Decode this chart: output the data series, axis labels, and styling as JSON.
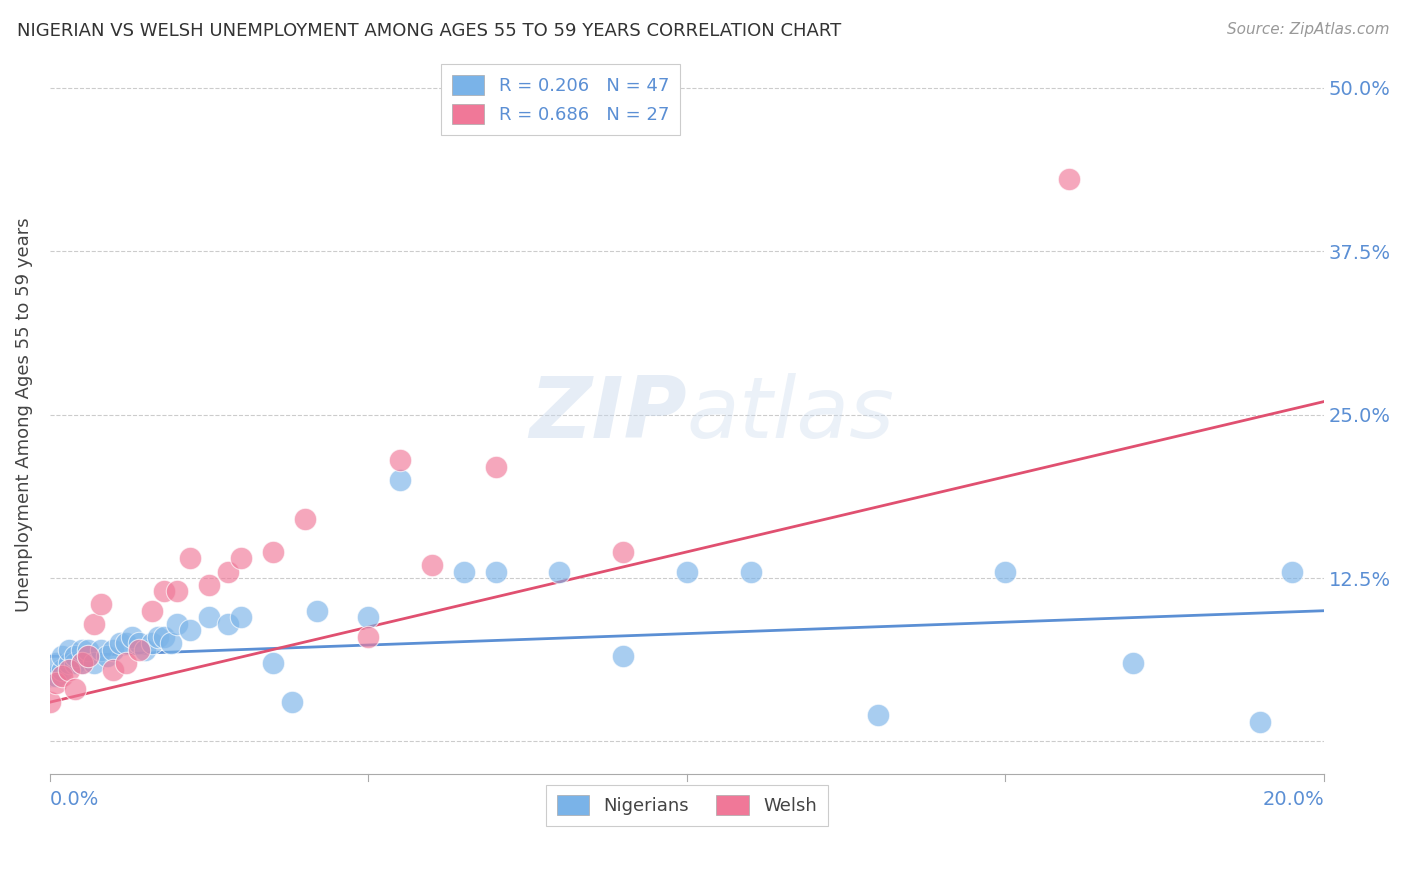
{
  "title": "NIGERIAN VS WELSH UNEMPLOYMENT AMONG AGES 55 TO 59 YEARS CORRELATION CHART",
  "source": "Source: ZipAtlas.com",
  "ylabel": "Unemployment Among Ages 55 to 59 years",
  "yticks": [
    0.0,
    0.125,
    0.25,
    0.375,
    0.5
  ],
  "ytick_labels": [
    "",
    "12.5%",
    "25.0%",
    "37.5%",
    "50.0%"
  ],
  "xlim": [
    0.0,
    0.2
  ],
  "ylim": [
    -0.025,
    0.525
  ],
  "legend_label1": "Nigerians",
  "legend_label2": "Welsh",
  "nigerian_color": "#7ab3e8",
  "welsh_color": "#f07898",
  "nigerian_line_color": "#5b8fd4",
  "welsh_line_color": "#e05070",
  "nigerian_x": [
    0.0,
    0.001,
    0.001,
    0.002,
    0.002,
    0.003,
    0.003,
    0.004,
    0.004,
    0.005,
    0.005,
    0.006,
    0.006,
    0.007,
    0.008,
    0.009,
    0.01,
    0.011,
    0.012,
    0.013,
    0.014,
    0.015,
    0.016,
    0.017,
    0.018,
    0.019,
    0.02,
    0.022,
    0.025,
    0.028,
    0.03,
    0.035,
    0.038,
    0.042,
    0.05,
    0.055,
    0.065,
    0.07,
    0.08,
    0.09,
    0.1,
    0.11,
    0.13,
    0.15,
    0.17,
    0.19,
    0.195
  ],
  "nigerian_y": [
    0.05,
    0.05,
    0.06,
    0.055,
    0.065,
    0.06,
    0.07,
    0.06,
    0.065,
    0.06,
    0.07,
    0.065,
    0.07,
    0.06,
    0.07,
    0.065,
    0.07,
    0.075,
    0.075,
    0.08,
    0.075,
    0.07,
    0.075,
    0.08,
    0.08,
    0.075,
    0.09,
    0.085,
    0.095,
    0.09,
    0.095,
    0.06,
    0.03,
    0.1,
    0.095,
    0.2,
    0.13,
    0.13,
    0.13,
    0.065,
    0.13,
    0.13,
    0.02,
    0.13,
    0.06,
    0.015,
    0.13
  ],
  "welsh_x": [
    0.0,
    0.001,
    0.002,
    0.003,
    0.004,
    0.005,
    0.006,
    0.007,
    0.008,
    0.01,
    0.012,
    0.014,
    0.016,
    0.018,
    0.02,
    0.022,
    0.025,
    0.028,
    0.03,
    0.035,
    0.04,
    0.05,
    0.055,
    0.06,
    0.07,
    0.09,
    0.16
  ],
  "welsh_y": [
    0.03,
    0.045,
    0.05,
    0.055,
    0.04,
    0.06,
    0.065,
    0.09,
    0.105,
    0.055,
    0.06,
    0.07,
    0.1,
    0.115,
    0.115,
    0.14,
    0.12,
    0.13,
    0.14,
    0.145,
    0.17,
    0.08,
    0.215,
    0.135,
    0.21,
    0.145,
    0.43
  ],
  "nig_line_x0": 0.0,
  "nig_line_x1": 0.2,
  "nig_line_y0": 0.065,
  "nig_line_y1": 0.1,
  "welsh_line_x0": 0.0,
  "welsh_line_x1": 0.2,
  "welsh_line_y0": 0.03,
  "welsh_line_y1": 0.26
}
